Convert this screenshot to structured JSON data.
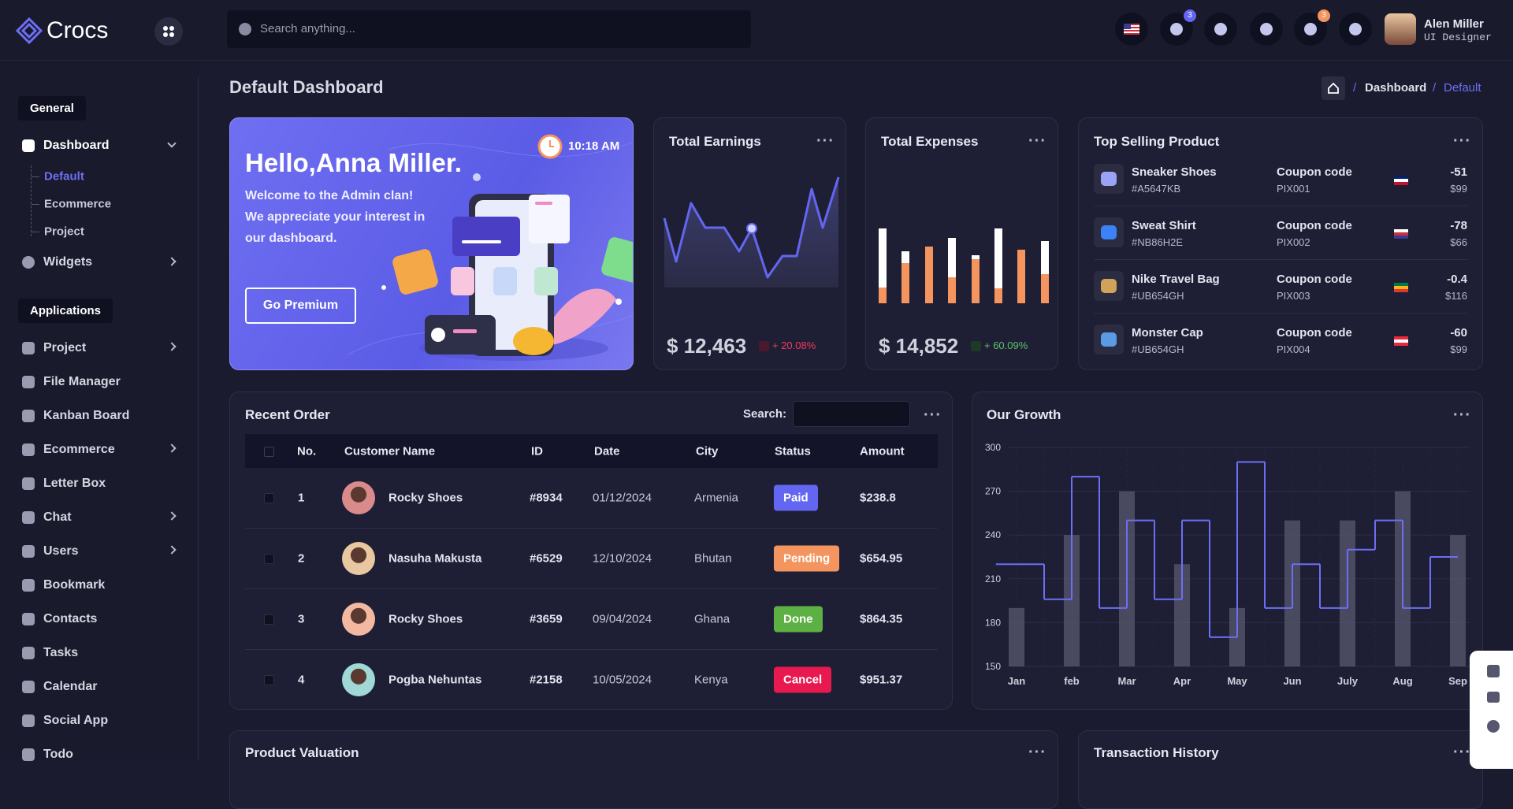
{
  "sidebar": {
    "brand": "Crocs",
    "sections": [
      {
        "title": "General",
        "items": [
          {
            "label": "Dashboard",
            "children": [
              "Default",
              "Ecommerce",
              "Project"
            ]
          },
          {
            "label": "Widgets"
          }
        ]
      },
      {
        "title": "Applications",
        "items": [
          {
            "label": "Project"
          },
          {
            "label": "File Manager"
          },
          {
            "label": "Kanban Board"
          },
          {
            "label": "Ecommerce"
          },
          {
            "label": "Letter Box"
          },
          {
            "label": "Chat"
          },
          {
            "label": "Users"
          },
          {
            "label": "Bookmark"
          },
          {
            "label": "Contacts"
          },
          {
            "label": "Tasks"
          },
          {
            "label": "Calendar"
          },
          {
            "label": "Social App"
          },
          {
            "label": "Todo"
          }
        ]
      }
    ]
  },
  "header": {
    "search_placeholder": "Search anything...",
    "notification_count": "3",
    "mail_count": "3",
    "user": {
      "name": "Alen Miller",
      "role": "UI Designer"
    }
  },
  "page": {
    "title": "Default Dashboard",
    "breadcrumb": [
      "Dashboard",
      "Default"
    ]
  },
  "welcome": {
    "title": "Hello,Anna Miller.",
    "lines": [
      "Welcome to the Admin clan!",
      "We appreciate your interest in",
      "our dashboard."
    ],
    "time": "10:18 AM",
    "button": "Go Premium"
  },
  "earnings": {
    "title": "Total Earnings",
    "value": "$ 12,463",
    "change": "+ 20.08%"
  },
  "expenses": {
    "title": "Total Expenses",
    "value": "$ 14,852",
    "change": "+ 60.09%"
  },
  "top_selling": {
    "title": "Top Selling Product",
    "products": [
      {
        "name": "Sneaker Shoes",
        "code": "#A5647KB",
        "coupon_label": "Coupon code",
        "coupon": "PIX001",
        "change": "-51",
        "price": "$99"
      },
      {
        "name": "Sweat Shirt",
        "code": "#NB86H2E",
        "coupon_label": "Coupon code",
        "coupon": "PIX002",
        "change": "-78",
        "price": "$66"
      },
      {
        "name": "Nike Travel Bag",
        "code": "#UB654GH",
        "coupon_label": "Coupon code",
        "coupon": "PIX003",
        "change": "-0.4",
        "price": "$116"
      },
      {
        "name": "Monster Cap",
        "code": "#UB654GH",
        "coupon_label": "Coupon code",
        "coupon": "PIX004",
        "change": "-60",
        "price": "$99"
      }
    ]
  },
  "recent_order": {
    "title": "Recent Order",
    "search_label": "Search:",
    "columns": [
      "No.",
      "Customer Name",
      "ID",
      "Date",
      "City",
      "Status",
      "Amount"
    ],
    "rows": [
      [
        "1",
        "Rocky Shoes",
        "#8934",
        "01/12/2024",
        "Armenia",
        "Paid",
        "$238.8"
      ],
      [
        "2",
        "Nasuha Makusta",
        "#6529",
        "12/10/2024",
        "Bhutan",
        "Pending",
        "$654.95"
      ],
      [
        "3",
        "Rocky Shoes",
        "#3659",
        "09/04/2024",
        "Ghana",
        "Done",
        "$864.35"
      ],
      [
        "4",
        "Pogba Nehuntas",
        "#2158",
        "10/05/2024",
        "Kenya",
        "Cancel",
        "$951.37"
      ]
    ]
  },
  "chart_data": {
    "type": "bar",
    "title": "Our Growth",
    "categories": [
      "Jan",
      null,
      "feb",
      null,
      "Mar",
      null,
      "Apr",
      null,
      "May",
      null,
      "Jun",
      null,
      "July",
      null,
      "Aug",
      null,
      "Sep"
    ],
    "series": [
      {
        "type": "bar",
        "color": "#5b5c72",
        "values": [
          190,
          null,
          240,
          null,
          270,
          null,
          220,
          null,
          190,
          null,
          250,
          null,
          250,
          null,
          270,
          null,
          240
        ]
      },
      {
        "type": "step",
        "color": "#6c6ff5",
        "values": [
          220,
          196,
          280,
          190,
          250,
          196,
          250,
          170,
          290,
          190,
          220,
          190,
          230,
          250,
          190,
          225,
          null
        ]
      }
    ],
    "ylim": [
      150,
      300
    ],
    "yticks": [
      150,
      180,
      210,
      240,
      270,
      300
    ],
    "grid": true
  },
  "bottom": {
    "product_valuation": "Product Valuation",
    "transaction_history": "Transaction History"
  }
}
